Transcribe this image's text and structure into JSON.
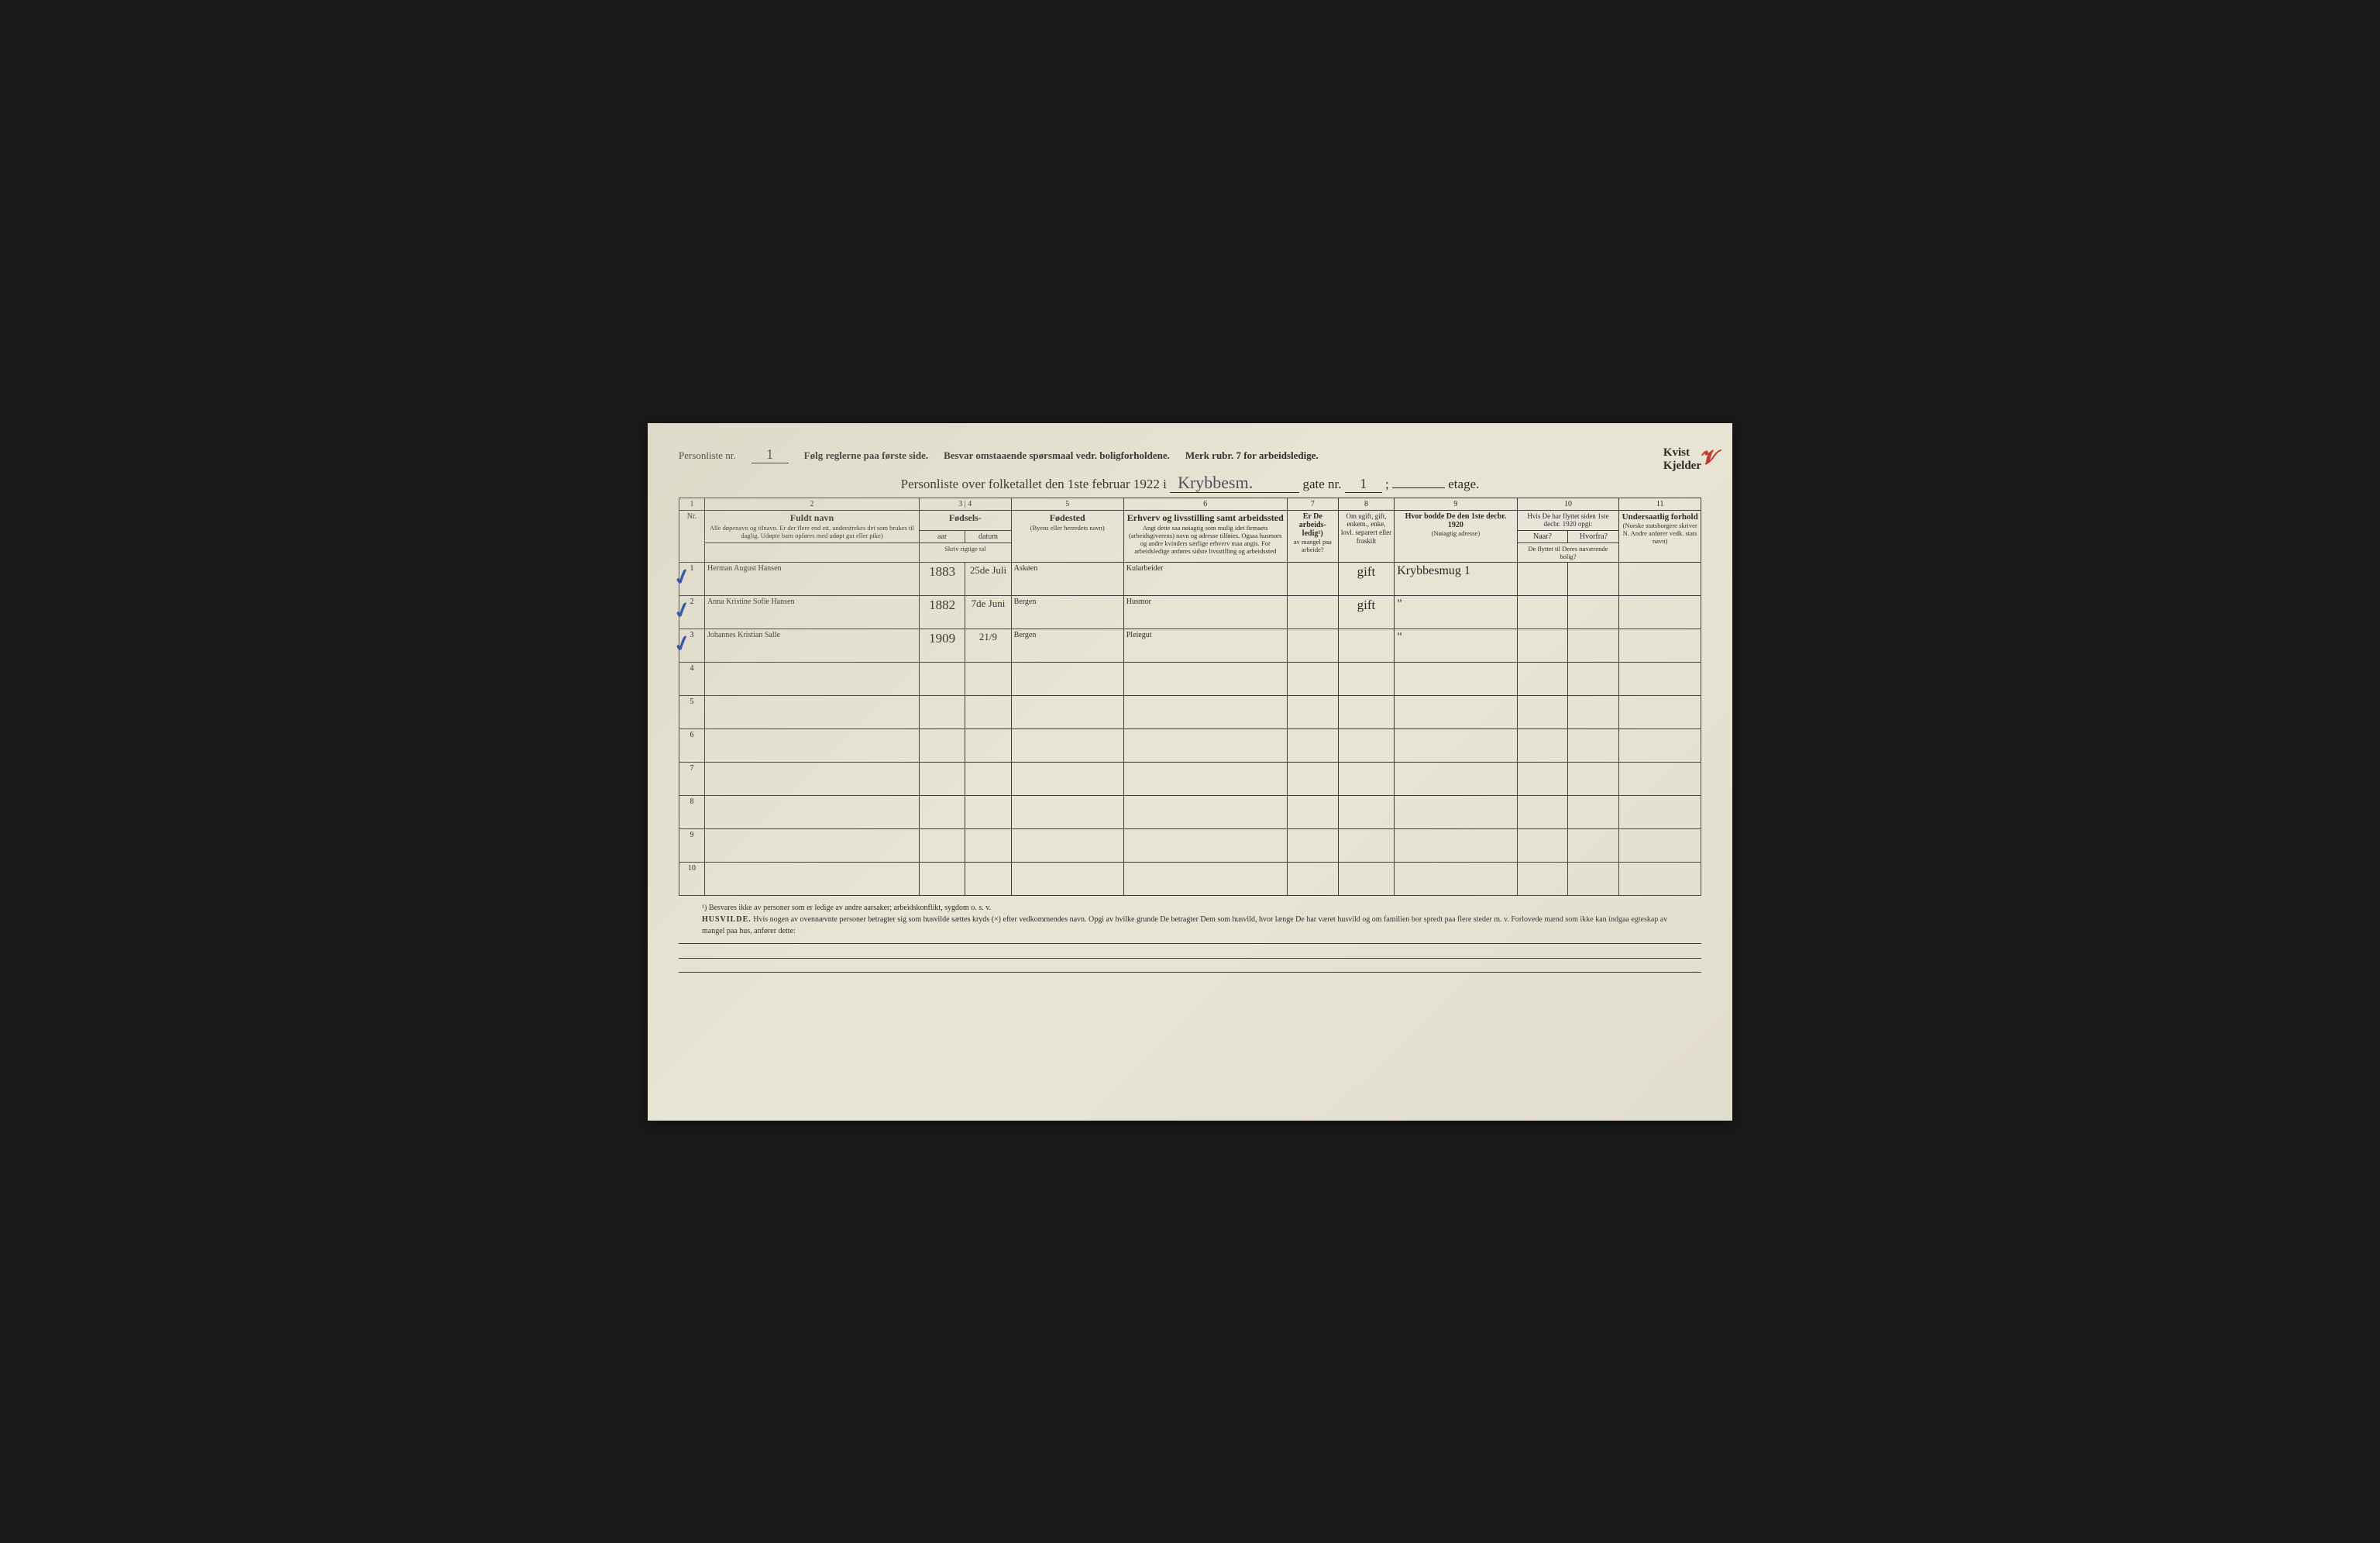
{
  "header": {
    "personliste_label": "Personliste nr.",
    "personliste_value": "1",
    "instruction1": "Følg reglerne paa første side.",
    "instruction2": "Besvar omstaaende spørsmaal vedr. boligforholdene.",
    "instruction3": "Merk rubr. 7 for arbeidsledige.",
    "kvist": "Kvist",
    "kjelder": "Kjelder",
    "title_prefix": "Personliste over folketallet den 1ste februar 1922 i",
    "street_name": "Krybbesm.",
    "gate_label": "gate nr.",
    "gate_value": "1",
    "etage_label": "etage."
  },
  "columns": {
    "c1": "1",
    "c2": {
      "num": "2",
      "title": "Fuldt navn",
      "sub": "Alle døpenavn og tilnavn. Er der flere end ett, understrekes det som brukes til daglig. Udøpte barn opføres med udøpt gut eller pike)"
    },
    "c3_4": {
      "num": "3     |     4",
      "title": "Fødsels-",
      "aar": "aar",
      "datum": "datum",
      "sub": "Skriv rigtige tal"
    },
    "c5": {
      "num": "5",
      "title": "Fødested",
      "sub": "(Byens eller herredets navn)"
    },
    "c6": {
      "num": "6",
      "title": "Erhverv og livsstilling samt arbeidssted",
      "sub": "Angi dette saa nøiagtig som mulig idet firmaets (arbeidsgiverens) navn og adresse tilføies. Ogsaa husmors og andre kvinders særlige erhverv maa angis. For arbeidsledige anføres sidste livsstilling og arbeidssted"
    },
    "c7": {
      "num": "7",
      "title": "Er De arbeids-ledig¹)",
      "sub": "av mangel paa arbeide?"
    },
    "c8": {
      "num": "8",
      "title": "Om ugift, gift, enkem., enke, lovl. separert eller fraskilt"
    },
    "c9": {
      "num": "9",
      "title": "Hvor bodde De den 1ste decbr. 1920",
      "sub": "(Nøiagtig adresse)"
    },
    "c10": {
      "num": "10",
      "title": "Hvis De har flyttet siden 1ste decbr. 1920 opgi:",
      "naar": "Naar?",
      "hvorfra": "Hvorfra?",
      "sub": "De flyttet til Deres nuværende bolig?"
    },
    "c11": {
      "num": "11",
      "title": "Undersaatlig forhold",
      "sub": "(Norske statsborgere skriver N. Andre anfører vedk. stats navn)"
    }
  },
  "rows": [
    {
      "n": "1",
      "name": "Herman August Hansen",
      "year": "1883",
      "date": "25de Juli",
      "birthplace": "Askøen",
      "occupation": "Kularbeider",
      "c7": "",
      "status": "gift",
      "addr1920": "Krybbesmug 1",
      "moved": "",
      "citizen": ""
    },
    {
      "n": "2",
      "name": "Anna Kristine Sofie Hansen",
      "year": "1882",
      "date": "7de Juni",
      "birthplace": "Bergen",
      "occupation": "Husmor",
      "c7": "",
      "status": "gift",
      "addr1920": "\"",
      "moved": "",
      "citizen": ""
    },
    {
      "n": "3",
      "name": "Johannes Kristian Salle",
      "year": "1909",
      "date": "21/9",
      "birthplace": "Bergen",
      "occupation": "Pleiegut",
      "c7": "",
      "status": "",
      "addr1920": "\"",
      "moved": "",
      "citizen": ""
    }
  ],
  "emptyRows": [
    "4",
    "5",
    "6",
    "7",
    "8",
    "9",
    "10"
  ],
  "footnotes": {
    "f1": "¹) Besvares ikke av personer som er ledige av andre aarsaker; arbeidskonflikt, sygdom o. s. v.",
    "f2_label": "HUSVILDE.",
    "f2": "Hvis nogen av ovennævnte personer betragter sig som husvilde sættes kryds (×) efter vedkommendes navn. Opgi av hvilke grunde De betragter Dem som husvild, hvor længe De har været husvild og om familien bor spredt paa flere steder m. v. Forlovede mænd som ikke kan indgaa egteskap av mangel paa hus, anfører dette:"
  },
  "style": {
    "paper_bg": "#e8e4d4",
    "ink": "#2a2a2a",
    "handwriting": "#3a3a4a",
    "checkmark_color": "#3a5aa8",
    "redmark_color": "#c23a2a",
    "col_widths_pct": [
      2.5,
      21,
      4.5,
      4.5,
      11,
      16,
      5,
      5.5,
      12,
      5,
      5,
      8
    ]
  }
}
